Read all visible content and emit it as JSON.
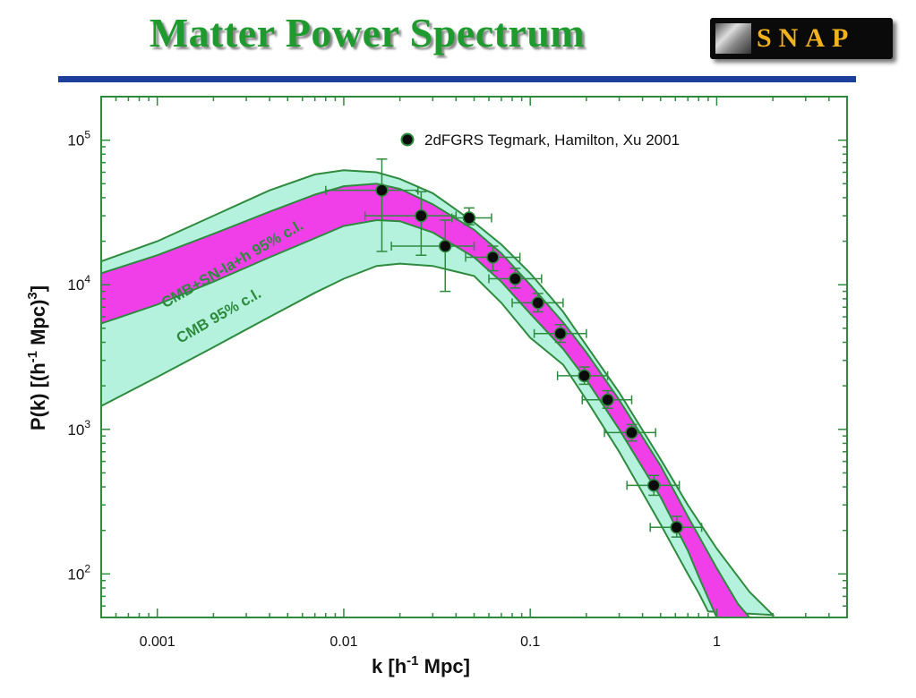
{
  "slide": {
    "title": "Matter Power Spectrum",
    "logo_text": "SNAP",
    "logo_icon": "telescope-image-icon"
  },
  "colors": {
    "title": "#1f9a2e",
    "divider": "#1d3f9c",
    "frame": "#2e8b3e",
    "cmb_band": "#b4f2de",
    "sn_band": "#f03ee8",
    "points": "#0b0b0b",
    "errorbars": "#2e8b3e"
  },
  "chart_data": {
    "type": "scatter",
    "xscale": "log",
    "yscale": "log",
    "xlim": [
      0.0005,
      5.0
    ],
    "ylim": [
      50,
      200000
    ],
    "xlabel": "k [h-1 Mpc]",
    "ylabel": "P(k) [(h-1 Mpc)3]",
    "xtick_labels": [
      "0.001",
      "0.01",
      "0.1",
      "1"
    ],
    "ytick_labels": [
      "105",
      "104",
      "103",
      "102"
    ],
    "legend": {
      "label": "2dFGRS Tegmark, Hamilton, Xu 2001",
      "placement": "top-center"
    },
    "band_labels": [
      "CMB+SN-Ia+h 95% c.l.",
      "CMB 95% c.l."
    ],
    "series": [
      {
        "name": "2dFGRS Tegmark, Hamilton, Xu 2001",
        "points": [
          {
            "k": 0.016,
            "P": 45000,
            "klo": 0.008,
            "khi": 0.025,
            "Plo": 17000,
            "Phi": 74000
          },
          {
            "k": 0.026,
            "P": 30000,
            "klo": 0.013,
            "khi": 0.04,
            "Plo": 16000,
            "Phi": 44000
          },
          {
            "k": 0.035,
            "P": 18500,
            "klo": 0.018,
            "khi": 0.05,
            "Plo": 9000,
            "Phi": 28000
          },
          {
            "k": 0.047,
            "P": 29000,
            "klo": 0.038,
            "khi": 0.062,
            "Plo": 26000,
            "Phi": 34000
          },
          {
            "k": 0.063,
            "P": 15500,
            "klo": 0.045,
            "khi": 0.088,
            "Plo": 12500,
            "Phi": 18500
          },
          {
            "k": 0.083,
            "P": 11000,
            "klo": 0.06,
            "khi": 0.115,
            "Plo": 9500,
            "Phi": 13000
          },
          {
            "k": 0.11,
            "P": 7500,
            "klo": 0.08,
            "khi": 0.15,
            "Plo": 6500,
            "Phi": 8700
          },
          {
            "k": 0.145,
            "P": 4600,
            "klo": 0.105,
            "khi": 0.2,
            "Plo": 4000,
            "Phi": 5300
          },
          {
            "k": 0.195,
            "P": 2350,
            "klo": 0.14,
            "khi": 0.26,
            "Plo": 2050,
            "Phi": 2700
          },
          {
            "k": 0.26,
            "P": 1600,
            "klo": 0.19,
            "khi": 0.35,
            "Plo": 1400,
            "Phi": 1850
          },
          {
            "k": 0.35,
            "P": 950,
            "klo": 0.25,
            "khi": 0.47,
            "Plo": 830,
            "Phi": 1080
          },
          {
            "k": 0.46,
            "P": 410,
            "klo": 0.33,
            "khi": 0.63,
            "Plo": 350,
            "Phi": 480
          },
          {
            "k": 0.61,
            "P": 210,
            "klo": 0.44,
            "khi": 0.83,
            "Plo": 180,
            "Phi": 250
          }
        ]
      }
    ],
    "bands": [
      {
        "label": "CMB 95% c.l.",
        "upper": [
          [
            0.0005,
            14500
          ],
          [
            0.001,
            20000
          ],
          [
            0.002,
            30000
          ],
          [
            0.004,
            45000
          ],
          [
            0.007,
            58000
          ],
          [
            0.01,
            62000
          ],
          [
            0.015,
            60000
          ],
          [
            0.02,
            54000
          ],
          [
            0.03,
            43000
          ],
          [
            0.05,
            27000
          ],
          [
            0.07,
            19000
          ],
          [
            0.1,
            12000
          ],
          [
            0.15,
            6500
          ],
          [
            0.2,
            3800
          ],
          [
            0.3,
            1800
          ],
          [
            0.5,
            620
          ],
          [
            0.7,
            300
          ],
          [
            1.0,
            150
          ],
          [
            1.5,
            75
          ],
          [
            2.0,
            52
          ]
        ],
        "lower": [
          [
            0.0005,
            1450
          ],
          [
            0.001,
            2300
          ],
          [
            0.002,
            3700
          ],
          [
            0.004,
            6000
          ],
          [
            0.007,
            8800
          ],
          [
            0.01,
            11000
          ],
          [
            0.015,
            13500
          ],
          [
            0.02,
            14000
          ],
          [
            0.03,
            13500
          ],
          [
            0.05,
            11500
          ],
          [
            0.07,
            7500
          ],
          [
            0.1,
            4300
          ],
          [
            0.15,
            2800
          ],
          [
            0.2,
            1600
          ],
          [
            0.3,
            700
          ],
          [
            0.5,
            220
          ],
          [
            0.7,
            100
          ],
          [
            0.8,
            74
          ],
          [
            0.9,
            55
          ]
        ]
      },
      {
        "label": "CMB+SN-Ia+h 95% c.l.",
        "upper": [
          [
            0.0005,
            12000
          ],
          [
            0.001,
            16000
          ],
          [
            0.002,
            22500
          ],
          [
            0.004,
            32000
          ],
          [
            0.007,
            42000
          ],
          [
            0.01,
            48000
          ],
          [
            0.015,
            50000
          ],
          [
            0.02,
            46000
          ],
          [
            0.03,
            36000
          ],
          [
            0.05,
            24000
          ],
          [
            0.07,
            16500
          ],
          [
            0.1,
            10000
          ],
          [
            0.15,
            5500
          ],
          [
            0.2,
            3400
          ],
          [
            0.3,
            1600
          ],
          [
            0.5,
            560
          ],
          [
            0.7,
            250
          ],
          [
            1.0,
            110
          ],
          [
            1.3,
            62
          ],
          [
            1.5,
            50
          ]
        ],
        "lower": [
          [
            0.0005,
            5400
          ],
          [
            0.001,
            7300
          ],
          [
            0.002,
            10500
          ],
          [
            0.004,
            15500
          ],
          [
            0.007,
            21000
          ],
          [
            0.01,
            25500
          ],
          [
            0.015,
            28000
          ],
          [
            0.02,
            27500
          ],
          [
            0.03,
            23000
          ],
          [
            0.05,
            15500
          ],
          [
            0.07,
            10500
          ],
          [
            0.1,
            6300
          ],
          [
            0.15,
            3600
          ],
          [
            0.2,
            2200
          ],
          [
            0.3,
            1000
          ],
          [
            0.5,
            340
          ],
          [
            0.7,
            145
          ],
          [
            0.8,
            96
          ],
          [
            0.9,
            68
          ],
          [
            1.0,
            50
          ]
        ]
      }
    ]
  }
}
